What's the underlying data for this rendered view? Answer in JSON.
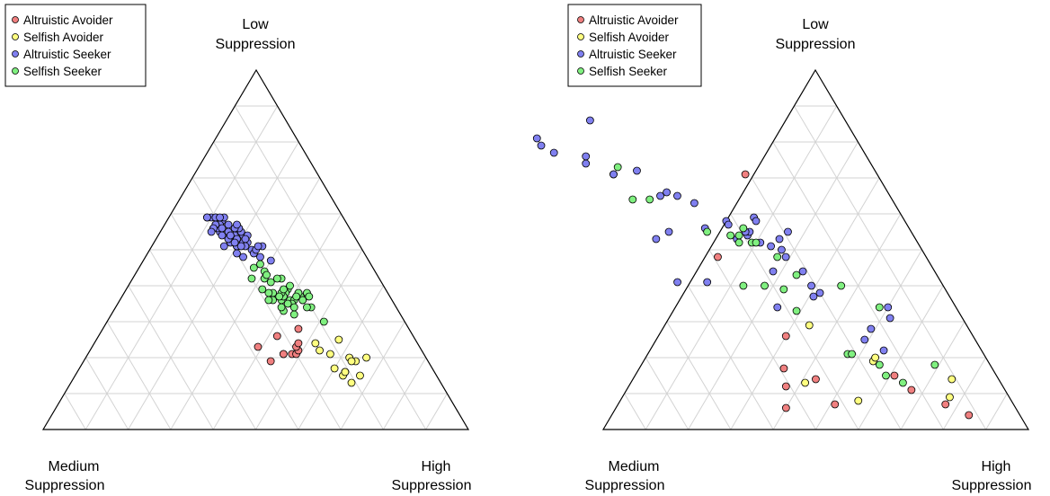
{
  "chart_data": [
    {
      "type": "scatter",
      "corner_labels": {
        "top": [
          "Low",
          "Suppression"
        ],
        "left": [
          "Medium",
          "Suppression"
        ],
        "right": [
          "High",
          "Suppression"
        ]
      },
      "grid": true,
      "legend_position": "top-left",
      "series": [
        {
          "name": "Altruistic Avoider",
          "color": "#f08080",
          "points": [
            [
              0.23,
              0.38,
              0.39
            ],
            [
              0.19,
              0.37,
              0.44
            ],
            [
              0.21,
              0.33,
              0.46
            ],
            [
              0.21,
              0.33,
              0.46
            ],
            [
              0.21,
              0.31,
              0.48
            ],
            [
              0.21,
              0.3,
              0.49
            ],
            [
              0.22,
              0.29,
              0.49
            ],
            [
              0.23,
              0.29,
              0.48
            ],
            [
              0.24,
              0.28,
              0.48
            ],
            [
              0.26,
              0.32,
              0.42
            ],
            [
              0.28,
              0.26,
              0.46
            ]
          ]
        },
        {
          "name": "Selfish Avoider",
          "color": "#ffff80",
          "points": [
            [
              0.17,
              0.23,
              0.6
            ],
            [
              0.13,
              0.21,
              0.66
            ],
            [
              0.16,
              0.21,
              0.63
            ],
            [
              0.2,
              0.18,
              0.62
            ],
            [
              0.19,
              0.17,
              0.64
            ],
            [
              0.2,
              0.14,
              0.66
            ],
            [
              0.25,
              0.18,
              0.57
            ],
            [
              0.24,
              0.24,
              0.52
            ],
            [
              0.22,
              0.24,
              0.54
            ],
            [
              0.21,
              0.22,
              0.57
            ],
            [
              0.19,
              0.18,
              0.63
            ],
            [
              0.15,
              0.22,
              0.63
            ],
            [
              0.15,
              0.18,
              0.67
            ],
            [
              0.16,
              0.21,
              0.63
            ]
          ]
        },
        {
          "name": "Altruistic Seeker",
          "color": "#8080f0",
          "points": [
            [
              0.59,
              0.3,
              0.11
            ],
            [
              0.56,
              0.32,
              0.12
            ],
            [
              0.53,
              0.29,
              0.18
            ],
            [
              0.56,
              0.3,
              0.14
            ],
            [
              0.55,
              0.29,
              0.16
            ],
            [
              0.53,
              0.3,
              0.17
            ],
            [
              0.51,
              0.29,
              0.2
            ],
            [
              0.55,
              0.27,
              0.18
            ],
            [
              0.54,
              0.28,
              0.18
            ],
            [
              0.52,
              0.27,
              0.21
            ],
            [
              0.52,
              0.3,
              0.18
            ],
            [
              0.51,
              0.29,
              0.2
            ],
            [
              0.54,
              0.26,
              0.2
            ],
            [
              0.55,
              0.26,
              0.19
            ],
            [
              0.58,
              0.29,
              0.13
            ],
            [
              0.59,
              0.28,
              0.13
            ],
            [
              0.57,
              0.28,
              0.15
            ],
            [
              0.53,
              0.3,
              0.17
            ],
            [
              0.56,
              0.26,
              0.18
            ],
            [
              0.5,
              0.26,
              0.24
            ],
            [
              0.49,
              0.3,
              0.21
            ],
            [
              0.47,
              0.23,
              0.3
            ],
            [
              0.52,
              0.26,
              0.22
            ],
            [
              0.51,
              0.23,
              0.26
            ],
            [
              0.56,
              0.27,
              0.17
            ],
            [
              0.54,
              0.25,
              0.21
            ],
            [
              0.49,
              0.26,
              0.25
            ],
            [
              0.5,
              0.25,
              0.25
            ],
            [
              0.48,
              0.25,
              0.27
            ],
            [
              0.55,
              0.31,
              0.14
            ],
            [
              0.59,
              0.31,
              0.1
            ],
            [
              0.57,
              0.31,
              0.12
            ],
            [
              0.51,
              0.32,
              0.17
            ],
            [
              0.59,
              0.32,
              0.09
            ],
            [
              0.53,
              0.28,
              0.19
            ],
            [
              0.59,
              0.3,
              0.11
            ],
            [
              0.57,
              0.26,
              0.17
            ],
            [
              0.57,
              0.3,
              0.13
            ],
            [
              0.54,
              0.31,
              0.15
            ],
            [
              0.53,
              0.26,
              0.21
            ],
            [
              0.48,
              0.29,
              0.23
            ],
            [
              0.51,
              0.27,
              0.22
            ],
            [
              0.56,
              0.31,
              0.13
            ],
            [
              0.57,
              0.31,
              0.12
            ],
            [
              0.52,
              0.29,
              0.19
            ],
            [
              0.51,
              0.24,
              0.25
            ],
            [
              0.55,
              0.29,
              0.16
            ],
            [
              0.54,
              0.29,
              0.17
            ],
            [
              0.56,
              0.3,
              0.14
            ],
            [
              0.56,
              0.32,
              0.12
            ],
            [
              0.55,
              0.33,
              0.12
            ],
            [
              0.51,
              0.28,
              0.21
            ],
            [
              0.59,
              0.29,
              0.12
            ],
            [
              0.59,
              0.32,
              0.09
            ]
          ]
        },
        {
          "name": "Selfish Seeker",
          "color": "#80f080",
          "points": [
            [
              0.46,
              0.26,
              0.28
            ],
            [
              0.39,
              0.23,
              0.38
            ],
            [
              0.37,
              0.21,
              0.42
            ],
            [
              0.38,
              0.24,
              0.38
            ],
            [
              0.42,
              0.23,
              0.35
            ],
            [
              0.36,
              0.24,
              0.4
            ],
            [
              0.37,
              0.27,
              0.36
            ],
            [
              0.38,
              0.27,
              0.35
            ],
            [
              0.36,
              0.28,
              0.36
            ],
            [
              0.3,
              0.19,
              0.51
            ],
            [
              0.36,
              0.21,
              0.43
            ],
            [
              0.36,
              0.29,
              0.35
            ],
            [
              0.33,
              0.27,
              0.4
            ],
            [
              0.42,
              0.27,
              0.31
            ],
            [
              0.42,
              0.3,
              0.28
            ],
            [
              0.32,
              0.25,
              0.43
            ],
            [
              0.39,
              0.29,
              0.32
            ],
            [
              0.38,
              0.19,
              0.43
            ],
            [
              0.34,
              0.27,
              0.39
            ],
            [
              0.36,
              0.23,
              0.41
            ],
            [
              0.4,
              0.22,
              0.38
            ],
            [
              0.34,
              0.2,
              0.46
            ],
            [
              0.38,
              0.21,
              0.41
            ],
            [
              0.36,
              0.26,
              0.38
            ],
            [
              0.37,
              0.25,
              0.38
            ],
            [
              0.38,
              0.25,
              0.37
            ],
            [
              0.38,
              0.28,
              0.34
            ],
            [
              0.36,
              0.21,
              0.43
            ],
            [
              0.41,
              0.26,
              0.33
            ],
            [
              0.39,
              0.24,
              0.37
            ],
            [
              0.37,
              0.26,
              0.37
            ],
            [
              0.34,
              0.21,
              0.45
            ],
            [
              0.45,
              0.28,
              0.27
            ],
            [
              0.42,
              0.24,
              0.34
            ],
            [
              0.35,
              0.24,
              0.41
            ],
            [
              0.44,
              0.26,
              0.3
            ],
            [
              0.34,
              0.24,
              0.42
            ],
            [
              0.43,
              0.26,
              0.31
            ],
            [
              0.35,
              0.25,
              0.4
            ],
            [
              0.37,
              0.22,
              0.41
            ],
            [
              0.37,
              0.19,
              0.44
            ]
          ]
        }
      ]
    },
    {
      "type": "scatter",
      "corner_labels": {
        "top": [
          "Low",
          "Suppression"
        ],
        "left": [
          "Medium",
          "Suppression"
        ],
        "right": [
          "High",
          "Suppression"
        ]
      },
      "grid": true,
      "legend_position": "top-left",
      "series": [
        {
          "name": "Altruistic Avoider",
          "color": "#f08080",
          "points": [
            [
              0.71,
              0.31,
              -0.02
            ],
            [
              0.48,
              0.49,
              0.03
            ],
            [
              0.26,
              0.44,
              0.3
            ],
            [
              0.17,
              0.49,
              0.34
            ],
            [
              0.12,
              0.51,
              0.37
            ],
            [
              0.06,
              0.54,
              0.4
            ],
            [
              0.14,
              0.43,
              0.43
            ],
            [
              0.07,
              0.42,
              0.51
            ],
            [
              0.15,
              0.24,
              0.61
            ],
            [
              0.07,
              0.16,
              0.77
            ],
            [
              0.04,
              0.12,
              0.84
            ],
            [
              0.11,
              0.22,
              0.67
            ]
          ]
        },
        {
          "name": "Selfish Avoider",
          "color": "#ffff80",
          "points": [
            [
              0.29,
              0.37,
              0.34
            ],
            [
              0.13,
              0.46,
              0.41
            ],
            [
              0.19,
              0.27,
              0.54
            ],
            [
              0.2,
              0.26,
              0.54
            ],
            [
              0.08,
              0.36,
              0.56
            ],
            [
              0.14,
              0.11,
              0.75
            ],
            [
              0.09,
              0.14,
              0.77
            ]
          ]
        },
        {
          "name": "Altruistic Seeker",
          "color": "#8080f0",
          "points": [
            [
              0.86,
              0.6,
              -0.46
            ],
            [
              0.81,
              0.75,
              -0.56
            ],
            [
              0.79,
              0.75,
              -0.54
            ],
            [
              0.77,
              0.73,
              -0.5
            ],
            [
              0.74,
              0.67,
              -0.41
            ],
            [
              0.76,
              0.66,
              -0.42
            ],
            [
              0.71,
              0.62,
              -0.33
            ],
            [
              0.71,
              0.62,
              -0.33
            ],
            [
              0.72,
              0.56,
              -0.28
            ],
            [
              0.65,
              0.5,
              -0.15
            ],
            [
              0.65,
              0.54,
              -0.19
            ],
            [
              0.66,
              0.52,
              -0.18
            ],
            [
              0.63,
              0.47,
              -0.1
            ],
            [
              0.59,
              0.35,
              0.06
            ],
            [
              0.55,
              0.29,
              0.16
            ],
            [
              0.58,
              0.42,
              0.0
            ],
            [
              0.53,
              0.42,
              0.05
            ],
            [
              0.54,
              0.39,
              0.07
            ],
            [
              0.53,
              0.32,
              0.15
            ],
            [
              0.5,
              0.33,
              0.17
            ],
            [
              0.44,
              0.38,
              0.18
            ],
            [
              0.44,
              0.31,
              0.25
            ],
            [
              0.4,
              0.31,
              0.29
            ],
            [
              0.38,
              0.3,
              0.32
            ],
            [
              0.41,
              0.62,
              -0.03
            ],
            [
              0.41,
              0.55,
              0.04
            ],
            [
              0.53,
              0.61,
              -0.14
            ],
            [
              0.55,
              0.57,
              -0.12
            ],
            [
              0.56,
              0.48,
              -0.04
            ],
            [
              0.57,
              0.42,
              0.01
            ],
            [
              0.58,
              0.35,
              0.07
            ],
            [
              0.52,
              0.37,
              0.11
            ],
            [
              0.55,
              0.38,
              0.07
            ],
            [
              0.48,
              0.33,
              0.19
            ],
            [
              0.34,
              0.42,
              0.24
            ],
            [
              0.37,
              0.32,
              0.31
            ],
            [
              0.34,
              0.16,
              0.5
            ],
            [
              0.31,
              0.17,
              0.52
            ],
            [
              0.28,
              0.23,
              0.49
            ],
            [
              0.25,
              0.26,
              0.49
            ],
            [
              0.22,
              0.23,
              0.55
            ],
            [
              0.51,
              0.35,
              0.14
            ],
            [
              0.55,
              0.39,
              0.06
            ]
          ]
        },
        {
          "name": "Selfish Seeker",
          "color": "#80f080",
          "points": [
            [
              0.73,
              0.6,
              -0.33
            ],
            [
              0.64,
              0.61,
              -0.25
            ],
            [
              0.64,
              0.57,
              -0.21
            ],
            [
              0.55,
              0.48,
              -0.03
            ],
            [
              0.56,
              0.39,
              0.05
            ],
            [
              0.52,
              0.39,
              0.09
            ],
            [
              0.54,
              0.43,
              0.03
            ],
            [
              0.52,
              0.42,
              0.06
            ],
            [
              0.54,
              0.41,
              0.05
            ],
            [
              0.52,
              0.38,
              0.1
            ],
            [
              0.48,
              0.35,
              0.17
            ],
            [
              0.4,
              0.47,
              0.13
            ],
            [
              0.4,
              0.42,
              0.18
            ],
            [
              0.39,
              0.38,
              0.23
            ],
            [
              0.33,
              0.38,
              0.29
            ],
            [
              0.4,
              0.24,
              0.36
            ],
            [
              0.34,
              0.18,
              0.48
            ],
            [
              0.21,
              0.32,
              0.47
            ],
            [
              0.21,
              0.31,
              0.48
            ],
            [
              0.18,
              0.26,
              0.56
            ],
            [
              0.13,
              0.23,
              0.64
            ],
            [
              0.18,
              0.13,
              0.69
            ],
            [
              0.15,
              0.26,
              0.59
            ],
            [
              0.43,
              0.33,
              0.24
            ]
          ]
        }
      ]
    }
  ]
}
